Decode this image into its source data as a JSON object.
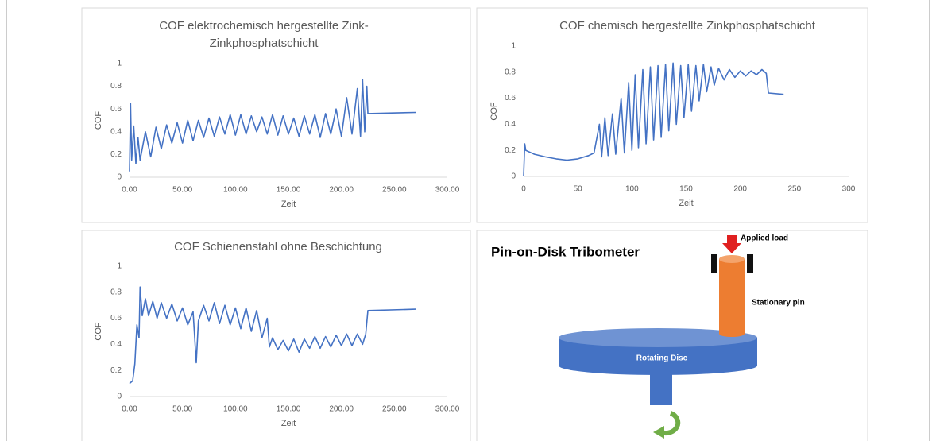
{
  "chart_data": [
    {
      "type": "line",
      "title": "COF elektrochemisch hergestellte Zink-Zinkphosphatschicht",
      "x_label": "Zeit",
      "y_label": "COF",
      "xlim": [
        0,
        300
      ],
      "xticks": [
        {
          "value": 0,
          "label": "0.00"
        },
        {
          "value": 50,
          "label": "50.00"
        },
        {
          "value": 100,
          "label": "100.00"
        },
        {
          "value": 150,
          "label": "150.00"
        },
        {
          "value": 200,
          "label": "200.00"
        },
        {
          "value": 250,
          "label": "250.00"
        },
        {
          "value": 300,
          "label": "300.00"
        }
      ],
      "ylim": [
        0,
        1
      ],
      "yticks": [
        0,
        0.2,
        0.4,
        0.6,
        0.8,
        1
      ],
      "grid": false,
      "x": [
        0,
        1,
        2,
        4,
        6,
        8,
        10,
        15,
        20,
        25,
        30,
        35,
        40,
        45,
        50,
        55,
        60,
        65,
        70,
        75,
        80,
        85,
        90,
        95,
        100,
        105,
        110,
        115,
        120,
        125,
        130,
        135,
        140,
        145,
        150,
        155,
        160,
        165,
        170,
        175,
        180,
        185,
        190,
        195,
        200,
        205,
        210,
        215,
        218,
        220,
        222,
        224,
        225,
        270
      ],
      "series": [
        {
          "color": "#4472c4",
          "values": [
            0.05,
            0.65,
            0.15,
            0.45,
            0.12,
            0.35,
            0.15,
            0.4,
            0.18,
            0.44,
            0.25,
            0.46,
            0.3,
            0.48,
            0.3,
            0.5,
            0.32,
            0.5,
            0.35,
            0.52,
            0.36,
            0.53,
            0.38,
            0.55,
            0.37,
            0.55,
            0.38,
            0.54,
            0.4,
            0.53,
            0.38,
            0.55,
            0.37,
            0.54,
            0.38,
            0.52,
            0.36,
            0.54,
            0.38,
            0.55,
            0.35,
            0.56,
            0.38,
            0.6,
            0.36,
            0.7,
            0.38,
            0.78,
            0.36,
            0.86,
            0.4,
            0.8,
            0.56,
            0.57
          ]
        }
      ]
    },
    {
      "type": "line",
      "title": "COF chemisch hergestellte Zinkphosphatschicht",
      "x_label": "Zeit",
      "y_label": "COF",
      "xlim": [
        0,
        300
      ],
      "xticks": [
        0,
        50,
        100,
        150,
        200,
        250,
        300
      ],
      "ylim": [
        0,
        1
      ],
      "yticks": [
        0,
        0.2,
        0.4,
        0.6,
        0.8,
        1
      ],
      "grid": false,
      "x": [
        0,
        1,
        2,
        10,
        20,
        30,
        40,
        50,
        60,
        65,
        70,
        72,
        75,
        78,
        82,
        85,
        90,
        93,
        97,
        100,
        103,
        106,
        110,
        113,
        117,
        120,
        124,
        127,
        131,
        134,
        138,
        141,
        145,
        148,
        152,
        155,
        159,
        162,
        166,
        169,
        173,
        176,
        180,
        185,
        190,
        195,
        200,
        205,
        210,
        215,
        220,
        224,
        226,
        240
      ],
      "series": [
        {
          "color": "#4472c4",
          "values": [
            0,
            0.25,
            0.2,
            0.17,
            0.15,
            0.135,
            0.125,
            0.135,
            0.16,
            0.18,
            0.4,
            0.15,
            0.45,
            0.16,
            0.48,
            0.17,
            0.6,
            0.18,
            0.72,
            0.2,
            0.78,
            0.22,
            0.82,
            0.25,
            0.84,
            0.28,
            0.85,
            0.3,
            0.86,
            0.35,
            0.87,
            0.4,
            0.85,
            0.45,
            0.86,
            0.5,
            0.85,
            0.58,
            0.86,
            0.65,
            0.84,
            0.7,
            0.83,
            0.74,
            0.82,
            0.76,
            0.81,
            0.77,
            0.81,
            0.78,
            0.82,
            0.79,
            0.64,
            0.63
          ]
        }
      ]
    },
    {
      "type": "line",
      "title": "COF Schienenstahl ohne Beschichtung",
      "x_label": "Zeit",
      "y_label": "COF",
      "xlim": [
        0,
        300
      ],
      "xticks": [
        {
          "value": 0,
          "label": "0.00"
        },
        {
          "value": 50,
          "label": "50.00"
        },
        {
          "value": 100,
          "label": "100.00"
        },
        {
          "value": 150,
          "label": "150.00"
        },
        {
          "value": 200,
          "label": "200.00"
        },
        {
          "value": 250,
          "label": "250.00"
        },
        {
          "value": 300,
          "label": "300.00"
        }
      ],
      "ylim": [
        0,
        1
      ],
      "yticks": [
        0,
        0.2,
        0.4,
        0.6,
        0.8,
        1
      ],
      "grid": false,
      "x": [
        0,
        3,
        5,
        7,
        9,
        10,
        12,
        15,
        18,
        22,
        26,
        30,
        35,
        40,
        45,
        50,
        55,
        60,
        63,
        65,
        70,
        75,
        80,
        85,
        90,
        95,
        100,
        105,
        110,
        115,
        120,
        125,
        130,
        132,
        135,
        140,
        145,
        150,
        155,
        160,
        165,
        170,
        175,
        180,
        185,
        190,
        195,
        200,
        205,
        210,
        215,
        220,
        223,
        225,
        270
      ],
      "series": [
        {
          "color": "#4472c4",
          "values": [
            0.1,
            0.12,
            0.25,
            0.55,
            0.45,
            0.84,
            0.62,
            0.75,
            0.62,
            0.73,
            0.6,
            0.72,
            0.6,
            0.71,
            0.58,
            0.68,
            0.55,
            0.65,
            0.26,
            0.58,
            0.7,
            0.58,
            0.72,
            0.56,
            0.7,
            0.55,
            0.68,
            0.52,
            0.68,
            0.5,
            0.66,
            0.45,
            0.6,
            0.38,
            0.45,
            0.36,
            0.43,
            0.35,
            0.44,
            0.34,
            0.44,
            0.37,
            0.46,
            0.37,
            0.46,
            0.38,
            0.47,
            0.39,
            0.48,
            0.39,
            0.48,
            0.4,
            0.48,
            0.66,
            0.67
          ]
        }
      ]
    }
  ],
  "diagram": {
    "title": "Pin-on-Disk Tribometer",
    "labels": {
      "load": "Applied load",
      "pin": "Stationary pin",
      "disc": "Rotating Disc"
    }
  }
}
